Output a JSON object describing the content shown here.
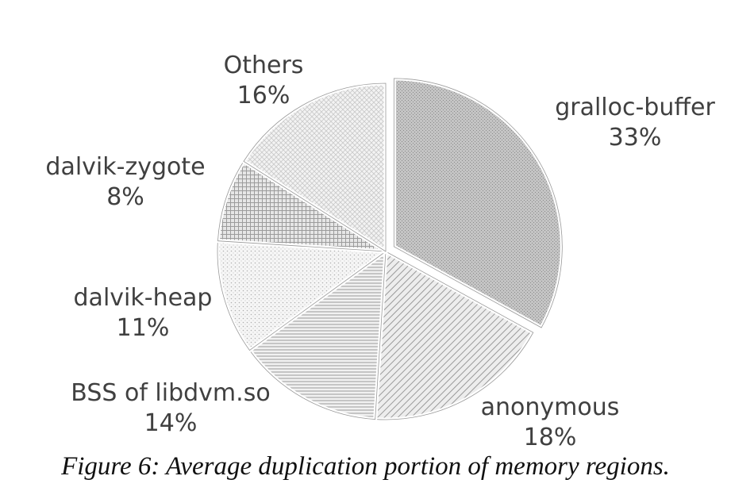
{
  "chart_data": {
    "type": "pie",
    "slices": [
      {
        "label": "gralloc-buffer",
        "value": 33,
        "value_text": "33%"
      },
      {
        "label": "anonymous",
        "value": 18,
        "value_text": "18%"
      },
      {
        "label": "BSS of libdvm.so",
        "value": 14,
        "value_text": "14%"
      },
      {
        "label": "dalvik-heap",
        "value": 11,
        "value_text": "11%"
      },
      {
        "label": "dalvik-zygote",
        "value": 8,
        "value_text": "8%"
      },
      {
        "label": "Others",
        "value": 16,
        "value_text": "16%"
      }
    ],
    "exploded_slice": "gralloc-buffer",
    "colors": {
      "outline": "#9a9a9a",
      "label": "#404040"
    }
  },
  "caption": "Figure 6: Average duplication portion of memory regions."
}
